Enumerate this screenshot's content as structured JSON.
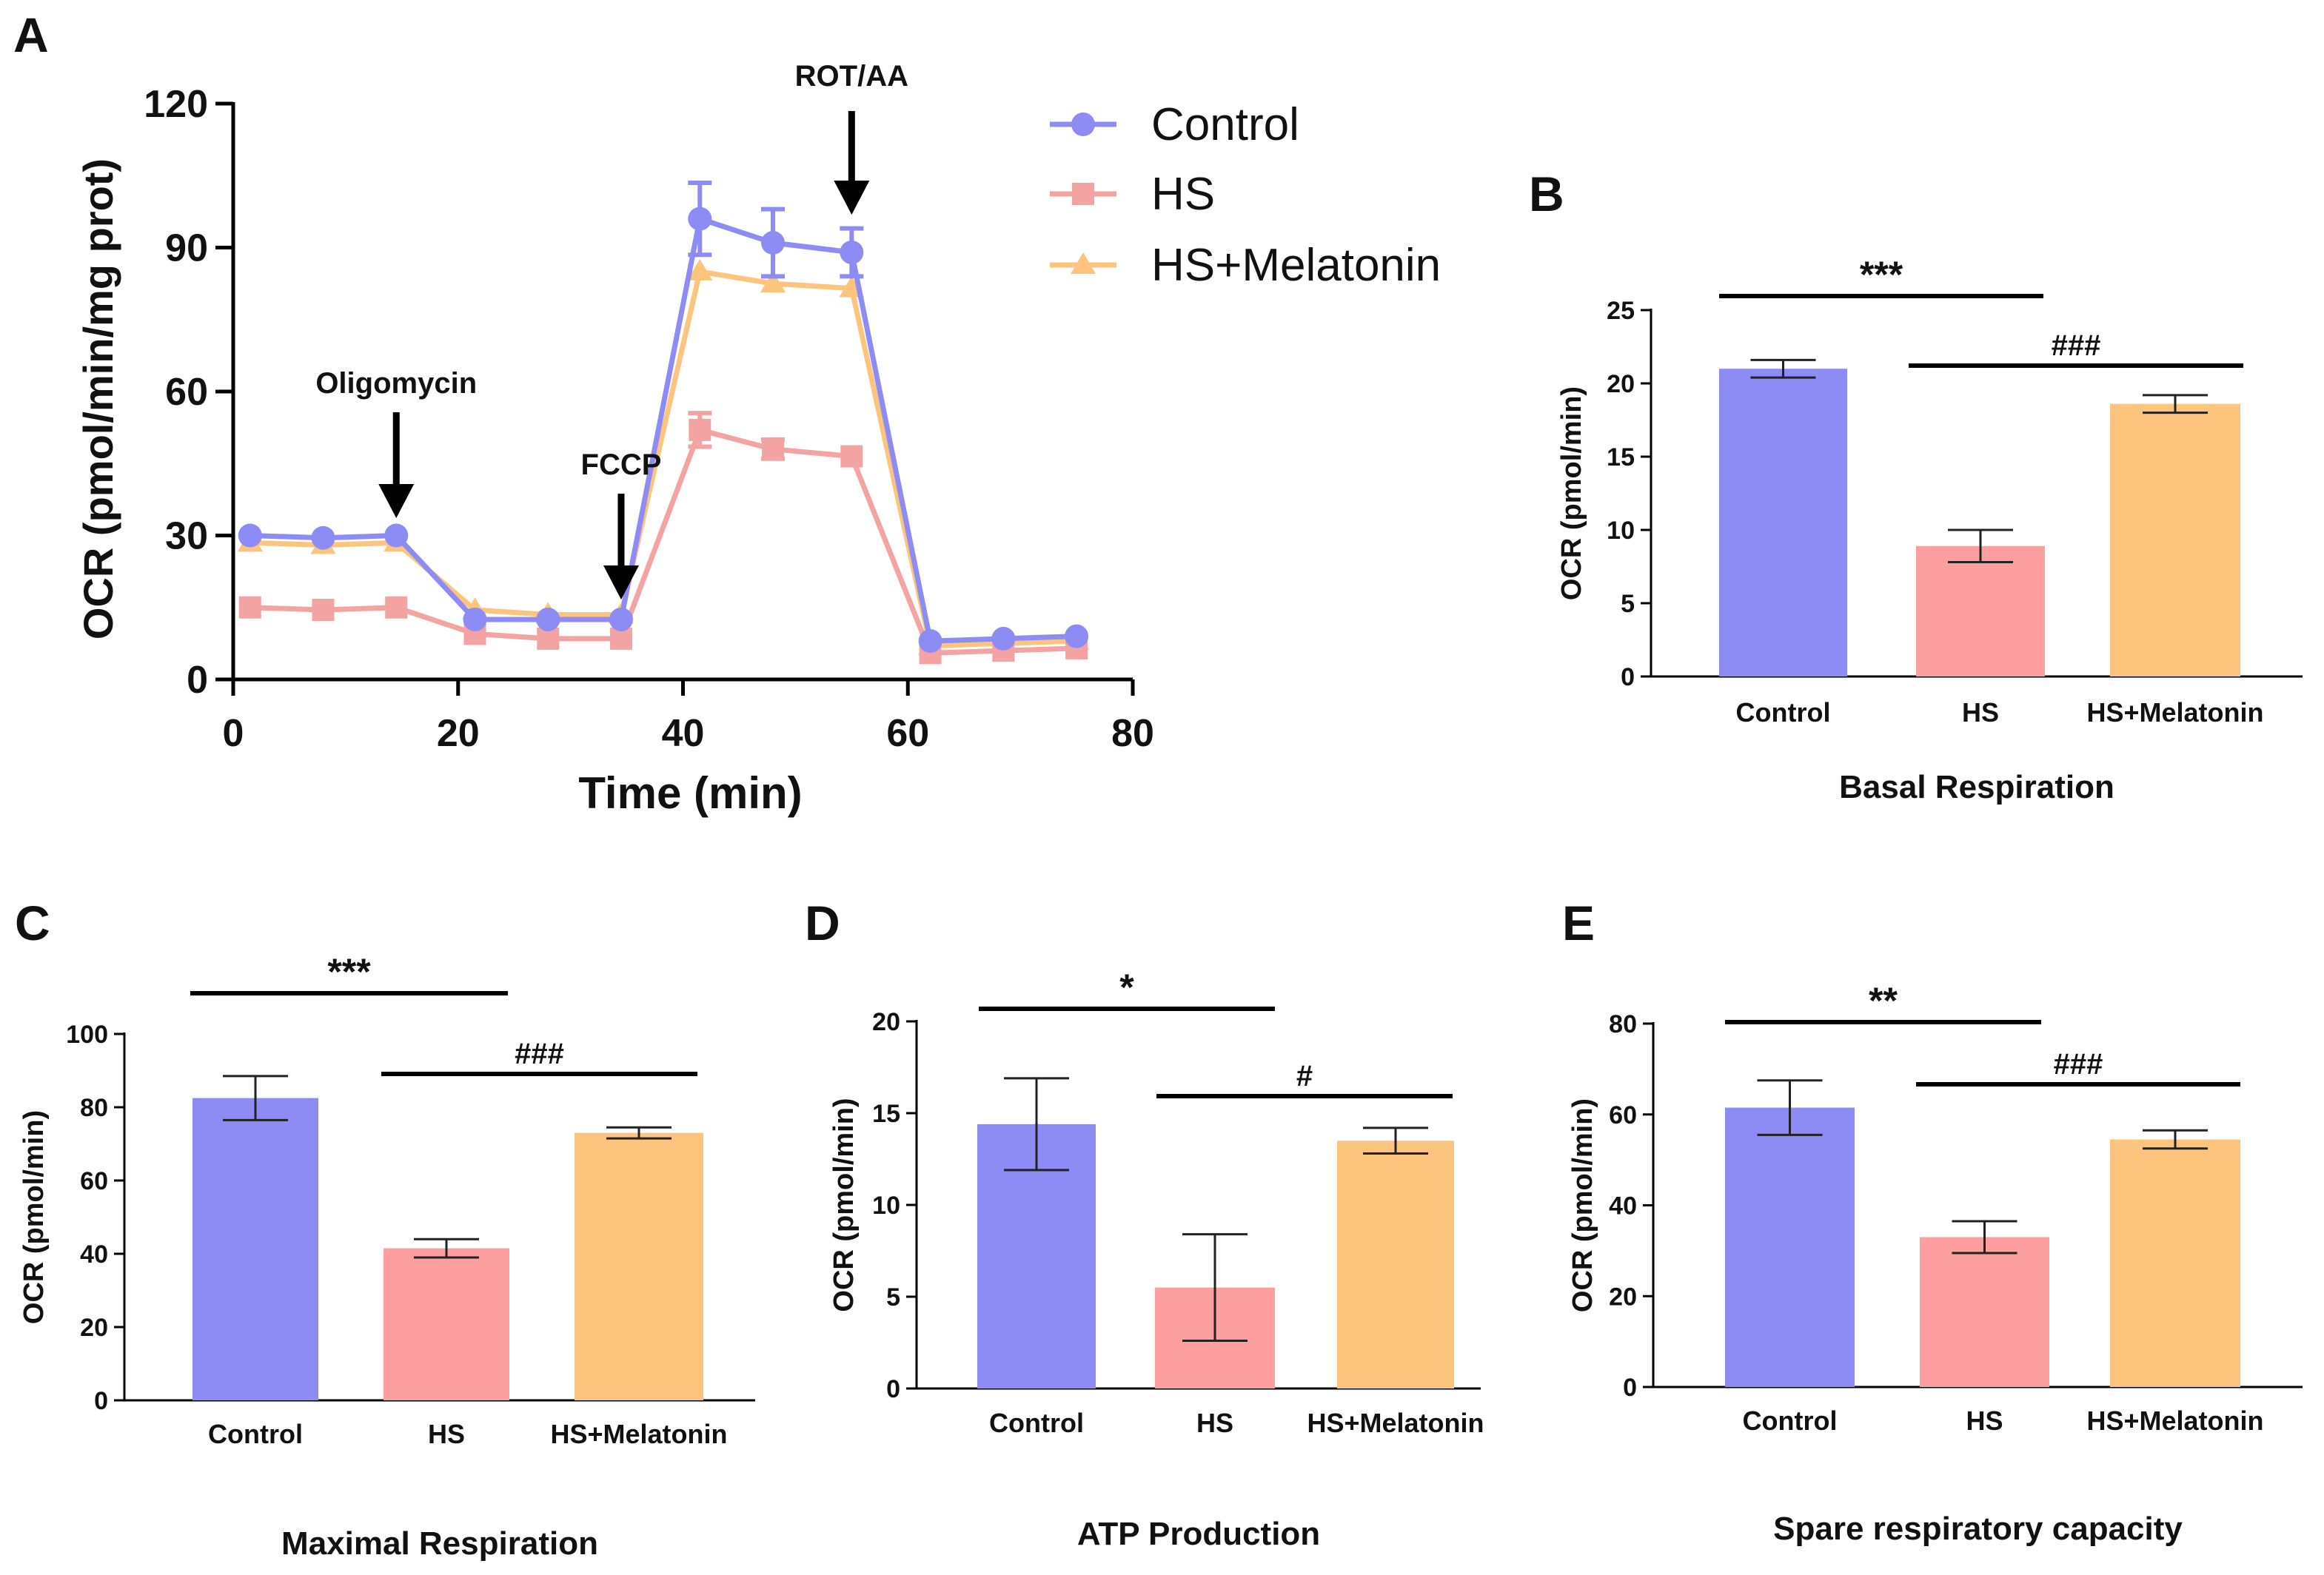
{
  "chart_data": [
    {
      "panel": "A",
      "type": "line",
      "ylabel": "OCR (pmol/min/mg prot)",
      "xlabel": "Time (min)",
      "xlim": [
        0,
        80
      ],
      "ylim": [
        0,
        120
      ],
      "xticks": [
        "0",
        "20",
        "40",
        "60",
        "80"
      ],
      "yticks": [
        "0",
        "30",
        "60",
        "90",
        "120"
      ],
      "x": [
        1.5,
        8,
        14.5,
        21.5,
        28,
        34.5,
        41.5,
        48,
        55,
        62,
        68.5,
        75
      ],
      "series": [
        {
          "name": "Control",
          "color": "#8c8cf4",
          "marker": "circle",
          "values": [
            30,
            29.5,
            30,
            12.5,
            12.5,
            12.5,
            96,
            91,
            89,
            8,
            8.5,
            9
          ],
          "errors": [
            0,
            0,
            0,
            0,
            0,
            0,
            7.5,
            7,
            5,
            0,
            0,
            0
          ]
        },
        {
          "name": "HS",
          "color": "#f4a3a3",
          "marker": "square",
          "values": [
            15,
            14.5,
            15,
            9.5,
            8.5,
            8.5,
            52,
            48,
            46.5,
            5.5,
            6,
            6.5
          ],
          "errors": [
            0,
            0,
            0,
            0,
            0,
            0,
            3.5,
            2,
            0,
            0,
            0,
            0
          ]
        },
        {
          "name": "HS+Melatonin",
          "color": "#fdc47e",
          "marker": "triangle",
          "values": [
            28.5,
            28,
            28.5,
            14.5,
            13.5,
            13.5,
            85,
            82.5,
            81.5,
            7,
            7.5,
            8
          ],
          "errors": [
            0,
            0,
            0,
            0,
            0,
            0,
            0,
            0,
            0,
            0,
            0,
            0
          ]
        }
      ],
      "annotations": [
        {
          "label": "Oligomycin",
          "x": 14.5
        },
        {
          "label": "FCCP",
          "x": 34.5
        },
        {
          "label": "ROT/AA",
          "x": 55
        }
      ],
      "legend": "top-right"
    },
    {
      "panel": "B",
      "type": "bar",
      "title": "Basal Respiration",
      "ylabel": "OCR (pmol/min)",
      "categories": [
        "Control",
        "HS",
        "HS+Melatonin"
      ],
      "values": [
        21,
        8.9,
        18.6
      ],
      "errors": [
        0.6,
        1.1,
        0.6
      ],
      "ylim": [
        0,
        25
      ],
      "yticks": [
        "0",
        "5",
        "10",
        "15",
        "20",
        "25"
      ],
      "significance": [
        {
          "label": "***",
          "from": 0,
          "to": 1
        },
        {
          "label": "###",
          "from": 1,
          "to": 2
        }
      ]
    },
    {
      "panel": "C",
      "type": "bar",
      "title": "Maximal Respiration",
      "ylabel": "OCR (pmol/min)",
      "categories": [
        "Control",
        "HS",
        "HS+Melatonin"
      ],
      "values": [
        82.5,
        41.5,
        73
      ],
      "errors": [
        6,
        2.5,
        1.5
      ],
      "ylim": [
        0,
        100
      ],
      "yticks": [
        "0",
        "20",
        "40",
        "60",
        "80",
        "100"
      ],
      "significance": [
        {
          "label": "***",
          "from": 0,
          "to": 1
        },
        {
          "label": "###",
          "from": 1,
          "to": 2
        }
      ]
    },
    {
      "panel": "D",
      "type": "bar",
      "title": "ATP Production",
      "ylabel": "OCR (pmol/min)",
      "categories": [
        "Control",
        "HS",
        "HS+Melatonin"
      ],
      "values": [
        14.4,
        5.5,
        13.5
      ],
      "errors": [
        2.5,
        2.9,
        0.7
      ],
      "ylim": [
        0,
        20
      ],
      "yticks": [
        "0",
        "5",
        "10",
        "15",
        "20"
      ],
      "significance": [
        {
          "label": "*",
          "from": 0,
          "to": 1
        },
        {
          "label": "#",
          "from": 1,
          "to": 2
        }
      ]
    },
    {
      "panel": "E",
      "type": "bar",
      "title": "Spare respiratory capacity",
      "ylabel": "OCR (pmol/min)",
      "categories": [
        "Control",
        "HS",
        "HS+Melatonin"
      ],
      "values": [
        61.5,
        33,
        54.5
      ],
      "errors": [
        6,
        3.5,
        2
      ],
      "ylim": [
        0,
        80
      ],
      "yticks": [
        "0",
        "20",
        "40",
        "60",
        "80"
      ],
      "significance": [
        {
          "label": "**",
          "from": 0,
          "to": 1
        },
        {
          "label": "###",
          "from": 1,
          "to": 2
        }
      ]
    }
  ]
}
